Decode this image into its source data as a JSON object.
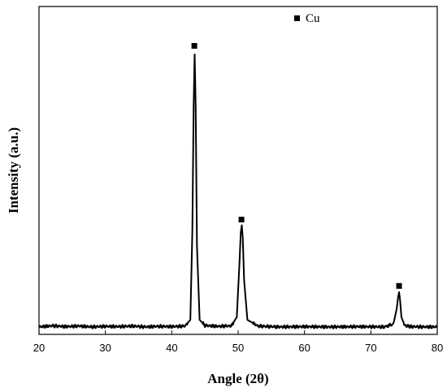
{
  "chart_data": {
    "type": "line",
    "title": "",
    "xlabel": "Angle (2θ)",
    "ylabel": "Intensity (a.u.)",
    "xlim": [
      20,
      80
    ],
    "ylim": [
      0,
      100
    ],
    "xticks": [
      20,
      30,
      40,
      50,
      60,
      70,
      80
    ],
    "grid": false,
    "legend": {
      "position": "top-right",
      "entries": [
        {
          "label": "Cu",
          "marker": "square"
        }
      ]
    },
    "series": [
      {
        "color": "#000000",
        "baseline": 1.5,
        "x": [
          20,
          22,
          24,
          26,
          28,
          30,
          32,
          34,
          36,
          38,
          40,
          42,
          42.8,
          43.1,
          43.3,
          43.45,
          43.6,
          43.8,
          44.2,
          45,
          47,
          49,
          49.8,
          50.2,
          50.4,
          50.55,
          50.7,
          50.9,
          51.4,
          53,
          56,
          60,
          64,
          68,
          72,
          73.4,
          73.9,
          74.1,
          74.25,
          74.4,
          74.6,
          75.1,
          76,
          78,
          80
        ],
        "y": [
          1.5,
          1.9,
          1.6,
          1.8,
          1.5,
          1.7,
          1.6,
          1.8,
          1.5,
          1.7,
          1.6,
          1.8,
          4,
          35,
          80,
          98,
          80,
          30,
          4,
          2,
          1.7,
          1.9,
          5,
          24,
          35,
          37.5,
          33,
          18,
          4,
          1.8,
          1.5,
          1.6,
          1.5,
          1.6,
          1.5,
          2.5,
          8,
          12,
          13.8,
          11,
          5,
          2,
          1.6,
          1.5,
          1.5
        ]
      }
    ],
    "markers": [
      {
        "x": 43.4,
        "y": 101,
        "shape": "square"
      },
      {
        "x": 50.5,
        "y": 39.5,
        "shape": "square"
      },
      {
        "x": 74.25,
        "y": 16,
        "shape": "square"
      }
    ]
  }
}
